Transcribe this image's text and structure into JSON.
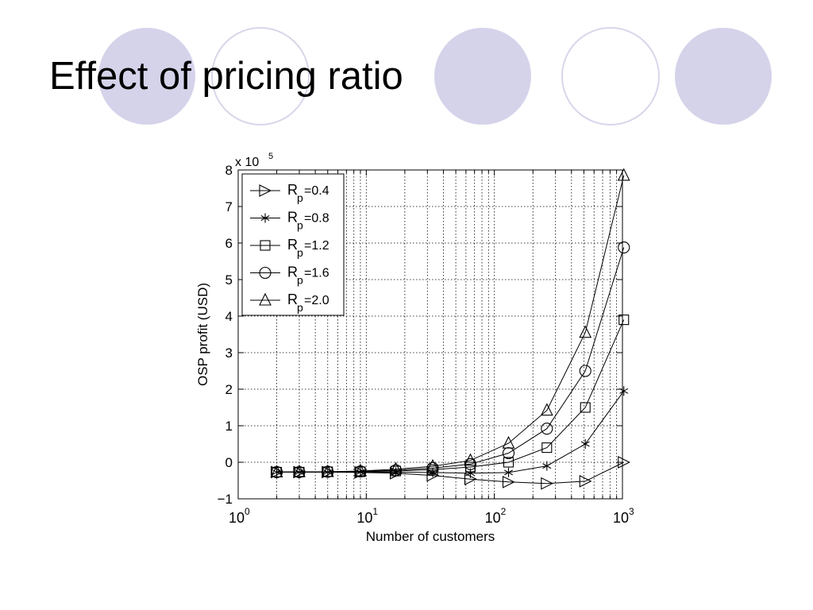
{
  "slide": {
    "title": "Effect of pricing ratio"
  },
  "theme": {
    "circle_fill": "#d5d3ea",
    "circle_stroke": "#d5d3ea",
    "ring_stroke": "#d8d6ea"
  },
  "chart_data": {
    "type": "line",
    "xlabel": "Number of customers",
    "ylabel": "OSP profit (USD)",
    "y_multiplier_label": "x 10",
    "y_multiplier_exp": "5",
    "xscale": "log",
    "xlim": [
      1,
      1000
    ],
    "ylim": [
      -1,
      8
    ],
    "x_ticks": [
      {
        "value": 1,
        "base": "10",
        "exp": "0"
      },
      {
        "value": 10,
        "base": "10",
        "exp": "1"
      },
      {
        "value": 100,
        "base": "10",
        "exp": "2"
      },
      {
        "value": 1000,
        "base": "10",
        "exp": "3"
      }
    ],
    "y_ticks": [
      {
        "value": -1,
        "label": "−1"
      },
      {
        "value": 0,
        "label": "0"
      },
      {
        "value": 1,
        "label": "1"
      },
      {
        "value": 2,
        "label": "2"
      },
      {
        "value": 3,
        "label": "3"
      },
      {
        "value": 4,
        "label": "4"
      },
      {
        "value": 5,
        "label": "5"
      },
      {
        "value": 6,
        "label": "6"
      },
      {
        "value": 7,
        "label": "7"
      },
      {
        "value": 8,
        "label": "8"
      }
    ],
    "grid": true,
    "legend_position": "top-left",
    "x": [
      2,
      3,
      5,
      9,
      17,
      33,
      65,
      129,
      257,
      513,
      1025
    ],
    "series": [
      {
        "name": "R_p=0.4",
        "label_main": "R",
        "label_sub": "p",
        "label_tail": "=0.4",
        "marker": "triangle-right",
        "values": [
          -0.27,
          -0.27,
          -0.27,
          -0.28,
          -0.3,
          -0.36,
          -0.46,
          -0.54,
          -0.58,
          -0.52,
          0.0
        ]
      },
      {
        "name": "R_p=0.8",
        "label_main": "R",
        "label_sub": "p",
        "label_tail": "=0.8",
        "marker": "star",
        "values": [
          -0.27,
          -0.27,
          -0.27,
          -0.27,
          -0.27,
          -0.28,
          -0.3,
          -0.28,
          -0.1,
          0.5,
          1.95
        ]
      },
      {
        "name": "R_p=1.2",
        "label_main": "R",
        "label_sub": "p",
        "label_tail": "=1.2",
        "marker": "square",
        "values": [
          -0.27,
          -0.27,
          -0.26,
          -0.26,
          -0.24,
          -0.2,
          -0.13,
          0.0,
          0.4,
          1.5,
          3.9
        ]
      },
      {
        "name": "R_p=1.6",
        "label_main": "R",
        "label_sub": "p",
        "label_tail": "=1.6",
        "marker": "circle",
        "values": [
          -0.27,
          -0.27,
          -0.26,
          -0.25,
          -0.22,
          -0.16,
          -0.05,
          0.25,
          0.92,
          2.5,
          5.88
        ]
      },
      {
        "name": "R_p=2.0",
        "label_main": "R",
        "label_sub": "p",
        "label_tail": "=2.0",
        "marker": "triangle-up",
        "values": [
          -0.27,
          -0.26,
          -0.26,
          -0.24,
          -0.19,
          -0.11,
          0.05,
          0.52,
          1.42,
          3.55,
          7.85
        ]
      }
    ]
  }
}
